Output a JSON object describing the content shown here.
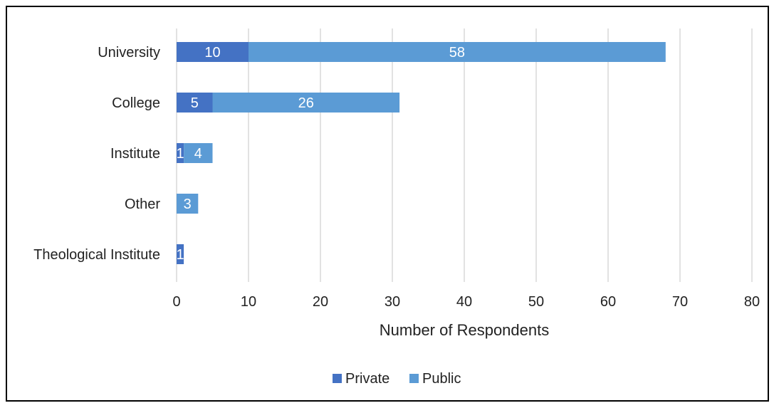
{
  "chart_data": {
    "type": "bar",
    "orientation": "horizontal",
    "stacked": true,
    "categories": [
      "University",
      "College",
      "Institute",
      "Other",
      "Theological Institute"
    ],
    "series": [
      {
        "name": "Private",
        "values": [
          10,
          5,
          1,
          0,
          1
        ],
        "labels": [
          "10",
          "5",
          "1",
          "",
          "1"
        ]
      },
      {
        "name": "Public",
        "values": [
          58,
          26,
          4,
          3,
          0
        ],
        "labels": [
          "58",
          "26",
          "4",
          "3",
          ""
        ]
      }
    ],
    "xlabel": "Number of Respondents",
    "ylabel": "",
    "xlim": [
      0,
      80
    ],
    "xticks": [
      "0",
      "10",
      "20",
      "30",
      "40",
      "50",
      "60",
      "70",
      "80"
    ],
    "grid": "vertical",
    "legend_position": "bottom",
    "colors": {
      "Private": "#4472c4",
      "Public": "#5b9bd5",
      "grid": "#d9d9d9"
    }
  }
}
